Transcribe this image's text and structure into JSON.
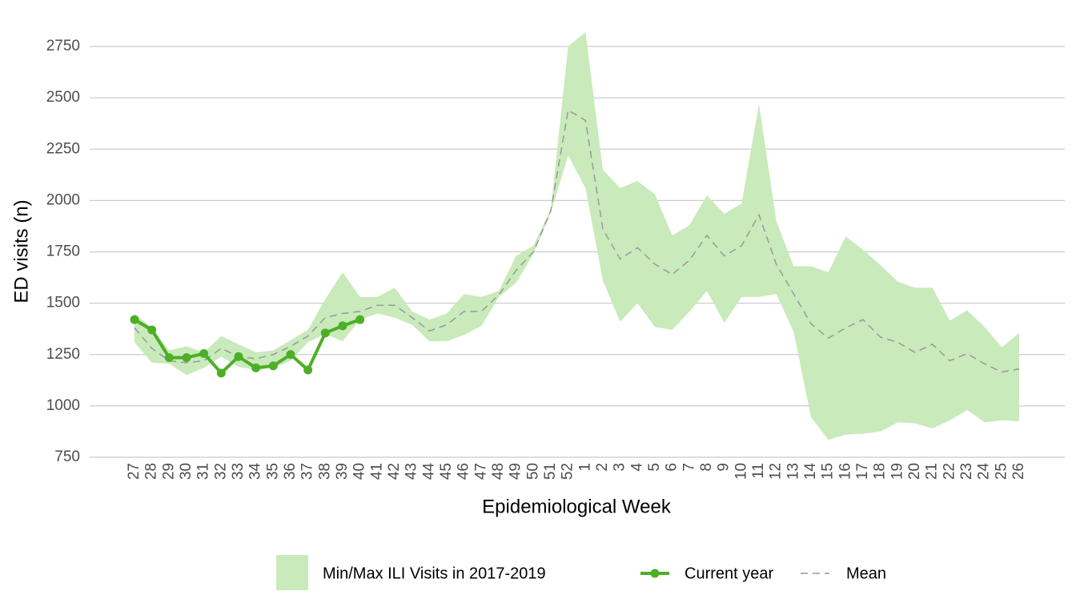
{
  "chart_data": {
    "type": "line",
    "x_label": "Epidemiological Week",
    "y_label": "ED visits (n)",
    "categories": [
      "27",
      "28",
      "29",
      "30",
      "31",
      "32",
      "33",
      "34",
      "35",
      "36",
      "37",
      "38",
      "39",
      "40",
      "41",
      "42",
      "43",
      "44",
      "45",
      "46",
      "47",
      "48",
      "49",
      "50",
      "51",
      "52",
      "1",
      "2",
      "3",
      "4",
      "5",
      "6",
      "7",
      "8",
      "9",
      "10",
      "11",
      "12",
      "13",
      "14",
      "15",
      "16",
      "17",
      "18",
      "19",
      "20",
      "21",
      "22",
      "23",
      "24",
      "25",
      "26"
    ],
    "band": {
      "name": "Min/Max ILI Visits in 2017-2019",
      "color": "#c9eabb",
      "min": [
        1310,
        1210,
        1205,
        1150,
        1185,
        1240,
        1190,
        1175,
        1185,
        1220,
        1310,
        1350,
        1315,
        1420,
        1450,
        1430,
        1395,
        1315,
        1315,
        1345,
        1390,
        1530,
        1600,
        1740,
        1940,
        2220,
        2060,
        1610,
        1410,
        1500,
        1385,
        1370,
        1460,
        1560,
        1405,
        1530,
        1530,
        1545,
        1360,
        945,
        835,
        860,
        865,
        875,
        920,
        915,
        890,
        930,
        980,
        920,
        930,
        925
      ],
      "max": [
        1450,
        1380,
        1270,
        1290,
        1260,
        1340,
        1300,
        1260,
        1270,
        1320,
        1370,
        1520,
        1650,
        1530,
        1530,
        1575,
        1460,
        1420,
        1450,
        1545,
        1530,
        1560,
        1730,
        1780,
        1960,
        2750,
        2820,
        2150,
        2060,
        2095,
        2030,
        1830,
        1880,
        2025,
        1935,
        1985,
        2470,
        1900,
        1680,
        1680,
        1650,
        1825,
        1760,
        1685,
        1605,
        1575,
        1575,
        1415,
        1465,
        1385,
        1285,
        1355
      ]
    },
    "series": [
      {
        "name": "Current year",
        "color": "#4daf26",
        "dash": false,
        "markers": true,
        "values": [
          1420,
          1370,
          1235,
          1235,
          1255,
          1160,
          1240,
          1185,
          1195,
          1250,
          1175,
          1355,
          1390,
          1420,
          null,
          null,
          null,
          null,
          null,
          null,
          null,
          null,
          null,
          null,
          null,
          null,
          null,
          null,
          null,
          null,
          null,
          null,
          null,
          null,
          null,
          null,
          null,
          null,
          null,
          null,
          null,
          null,
          null,
          null,
          null,
          null,
          null,
          null,
          null,
          null,
          null,
          null
        ]
      },
      {
        "name": "Mean",
        "color": "#999999",
        "dash": true,
        "markers": false,
        "values": [
          1380,
          1280,
          1220,
          1210,
          1220,
          1280,
          1240,
          1230,
          1250,
          1290,
          1340,
          1430,
          1450,
          1460,
          1490,
          1490,
          1430,
          1365,
          1395,
          1460,
          1460,
          1540,
          1660,
          1750,
          1950,
          2440,
          2390,
          1860,
          1715,
          1770,
          1690,
          1640,
          1710,
          1830,
          1730,
          1780,
          1930,
          1690,
          1545,
          1400,
          1330,
          1380,
          1420,
          1335,
          1310,
          1260,
          1300,
          1220,
          1255,
          1205,
          1165,
          1180
        ]
      }
    ],
    "ylim": [
      750,
      2750
    ],
    "yticks": [
      750,
      1000,
      1250,
      1500,
      1750,
      2000,
      2250,
      2500,
      2750
    ],
    "grid": true
  }
}
